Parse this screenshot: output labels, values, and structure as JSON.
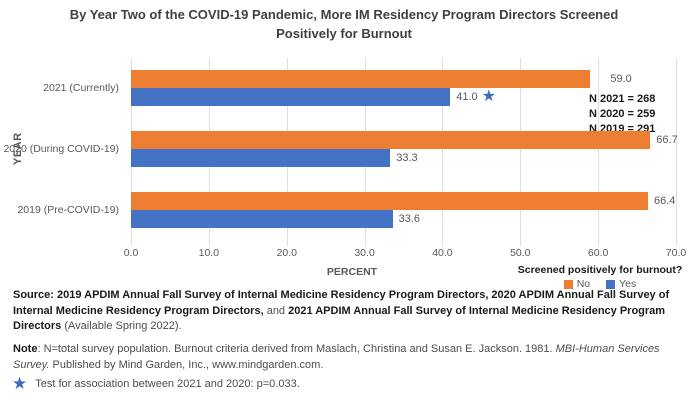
{
  "title": "By Year Two of the COVID-19 Pandemic, More IM Residency Program Directors Screened Positively for Burnout",
  "colors": {
    "series_no": "#ED7D31",
    "series_yes": "#4472C4",
    "title_text": "#404040",
    "axis_text": "#595959",
    "data_label_text": "#595959",
    "gridline": "#DEDEDE",
    "star": "#3E6DBF",
    "footer_bold_text": "#1A1A1A",
    "footer_regular_text": "#4D4D4D"
  },
  "chart_data": {
    "type": "bar",
    "orientation": "horizontal",
    "title": "By Year Two of the COVID-19 Pandemic, More IM Residency Program Directors Screened Positively for Burnout",
    "categories": [
      "2021 (Currently)",
      "2020 (During COVID-19)",
      "2019 (Pre-COVID-19)"
    ],
    "series": [
      {
        "name": "No",
        "color": "#ED7D31",
        "values": [
          59.0,
          66.7,
          66.4
        ]
      },
      {
        "name": "Yes",
        "color": "#4472C4",
        "values": [
          41.0,
          33.3,
          33.6
        ]
      }
    ],
    "xlabel": "PERCENT",
    "ylabel": "YEAR",
    "xlim": [
      0,
      70
    ],
    "xticks": [
      0,
      10,
      20,
      30,
      40,
      50,
      60,
      70
    ],
    "xtick_labels": [
      "0.0",
      "10.0",
      "20.0",
      "30.0",
      "40.0",
      "50.0",
      "60.0",
      "70.0"
    ],
    "grid": "vertical",
    "legend_title": "Screened positively for burnout?",
    "legend_position": "bottom-right",
    "annotations": {
      "starred_point": {
        "category": "2021 (Currently)",
        "series": "Yes",
        "marker": "★"
      },
      "n_values": [
        "N 2021 = 268",
        "N 2020 = 259",
        "N 2019 = 291"
      ]
    }
  },
  "footer": {
    "source_segments": [
      {
        "text": "Source: 2019 APDIM Annual Fall Survey of Internal Medicine Residency Program Directors, 2020 APDIM Annual Fall Survey of Internal Medicine Residency Program Directors,",
        "bold": true
      },
      {
        "text": " and ",
        "bold": false
      },
      {
        "text": "2021 APDIM Annual Fall Survey of Internal Medicine Residency Program Directors",
        "bold": true
      },
      {
        "text": " (Available Spring 2022).",
        "bold": false
      }
    ],
    "note_segments": [
      {
        "text": "Note",
        "bold": true
      },
      {
        "text": ": N=total survey population. Burnout criteria derived from Maslach, Christina and Susan E. Jackson. 1981. ",
        "bold": false
      },
      {
        "text": "MBI-Human Services Survey.",
        "italic": true
      },
      {
        "text": " Published by Mind Garden, Inc., www.mindgarden.com.",
        "bold": false
      }
    ],
    "star_note": {
      "marker": "★",
      "text": "Test for association between 2021 and 2020: p=0.033."
    }
  }
}
